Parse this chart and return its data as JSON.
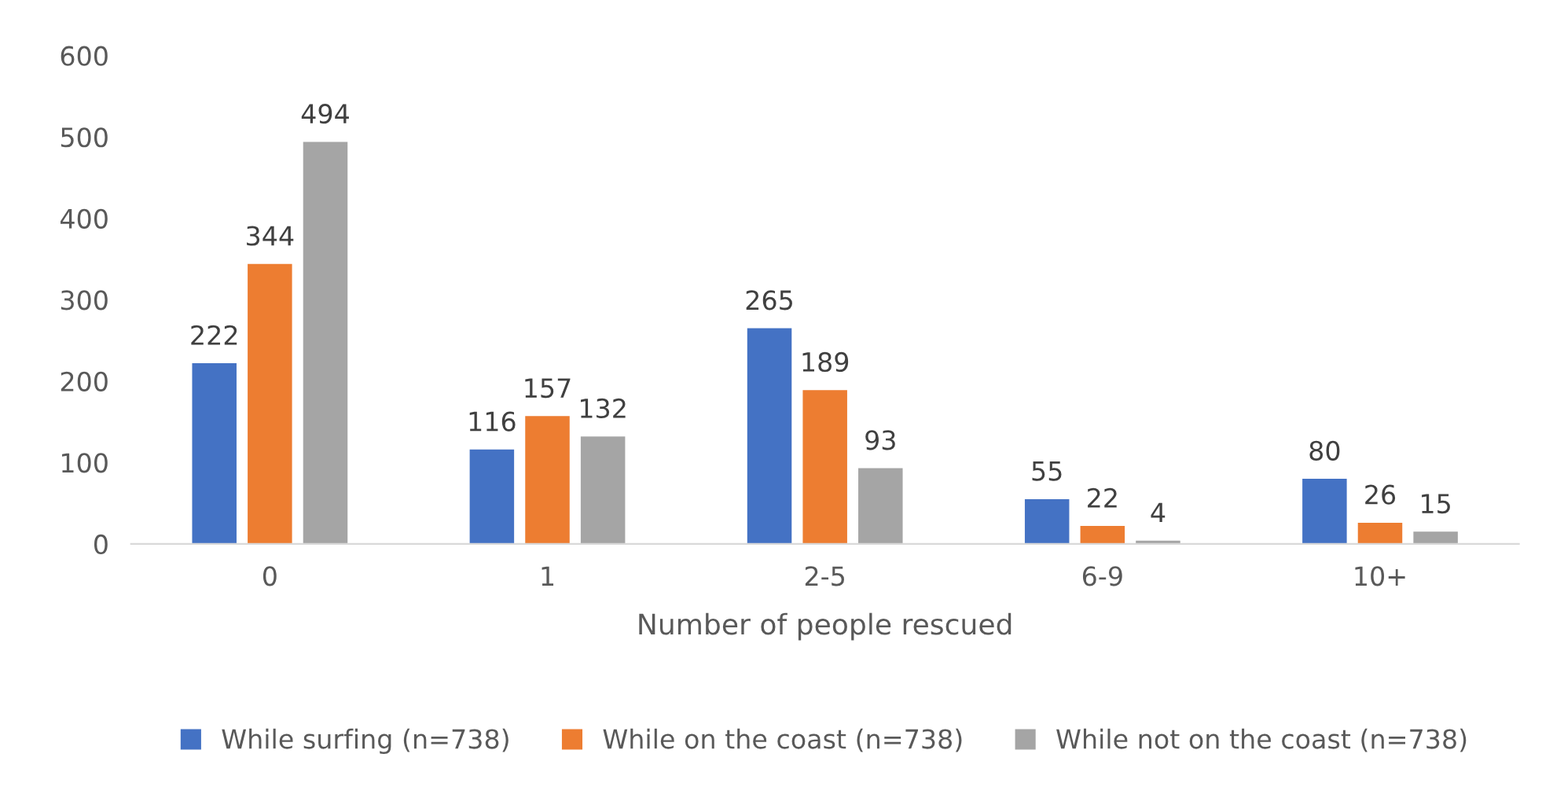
{
  "chart_data": {
    "type": "bar",
    "xlabel": "Number of people rescued",
    "categories": [
      "0",
      "1",
      "2-5",
      "6-9",
      "10+"
    ],
    "series": [
      {
        "name": "While surfing (n=738)",
        "color": "#4472c4",
        "values": [
          222,
          116,
          265,
          55,
          80
        ]
      },
      {
        "name": "While on the coast (n=738)",
        "color": "#ed7d31",
        "values": [
          344,
          157,
          189,
          22,
          26
        ]
      },
      {
        "name": "While not on the coast (n=738)",
        "color": "#a5a5a5",
        "values": [
          494,
          132,
          93,
          4,
          15
        ]
      }
    ],
    "ylim": [
      0,
      600
    ],
    "yticks": [
      0,
      100,
      200,
      300,
      400,
      500,
      600
    ],
    "data_labels": true,
    "grid": false,
    "legend": "bottom"
  }
}
